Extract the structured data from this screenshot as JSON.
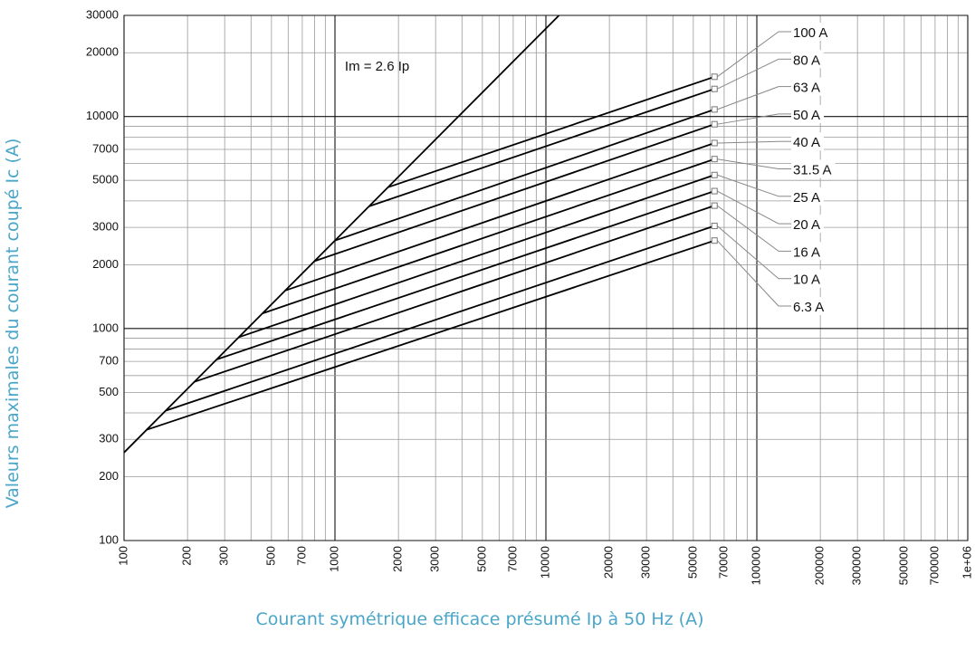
{
  "chart_data": {
    "type": "line",
    "title": "",
    "xlabel": "Courant symétrique efficace présumé Ip à 50 Hz (A)",
    "ylabel": "Valeurs maximales du courant coupé Ic (A)",
    "xscale": "log",
    "yscale": "log",
    "xlim": [
      100,
      1000000
    ],
    "ylim": [
      100,
      30000
    ],
    "grid": true,
    "x_ticks": [
      "100",
      "200",
      "300",
      "500",
      "700",
      "1000",
      "2000",
      "3000",
      "5000",
      "7000",
      "10000",
      "20000",
      "30000",
      "50000",
      "70000",
      "100000",
      "200000",
      "300000",
      "500000",
      "700000",
      "1e+06"
    ],
    "y_ticks": [
      "30000",
      "20000",
      "10000",
      "7000",
      "5000",
      "3000",
      "2000",
      "1000",
      "700",
      "500",
      "300",
      "200",
      "100"
    ],
    "annotations": [
      {
        "text": "Im = 2.6 Ip",
        "x": 1050,
        "y": 16500
      }
    ],
    "envelope": {
      "name": "Im = 2.6 Ip",
      "x": [
        100,
        11540
      ],
      "y": [
        260,
        30000
      ]
    },
    "series": [
      {
        "name": "100 A",
        "x": [
          1785,
          63000
        ],
        "y": [
          4640,
          15400
        ]
      },
      {
        "name": "80 A",
        "x": [
          1450,
          63000
        ],
        "y": [
          3770,
          13500
        ]
      },
      {
        "name": "63 A",
        "x": [
          1000,
          63000
        ],
        "y": [
          2600,
          10800
        ]
      },
      {
        "name": "50 A",
        "x": [
          800,
          63000
        ],
        "y": [
          2080,
          9200
        ]
      },
      {
        "name": "40 A",
        "x": [
          580,
          63000
        ],
        "y": [
          1510,
          7500
        ]
      },
      {
        "name": "31.5 A",
        "x": [
          455,
          63000
        ],
        "y": [
          1180,
          6300
        ]
      },
      {
        "name": "25 A",
        "x": [
          350,
          63000
        ],
        "y": [
          910,
          5300
        ]
      },
      {
        "name": "20 A",
        "x": [
          275,
          63000
        ],
        "y": [
          715,
          4450
        ]
      },
      {
        "name": "16 A",
        "x": [
          215,
          63000
        ],
        "y": [
          560,
          3800
        ]
      },
      {
        "name": "10 A",
        "x": [
          158,
          63000
        ],
        "y": [
          410,
          3050
        ]
      },
      {
        "name": "6.3 A",
        "x": [
          128,
          63000
        ],
        "y": [
          333,
          2600
        ]
      }
    ]
  }
}
